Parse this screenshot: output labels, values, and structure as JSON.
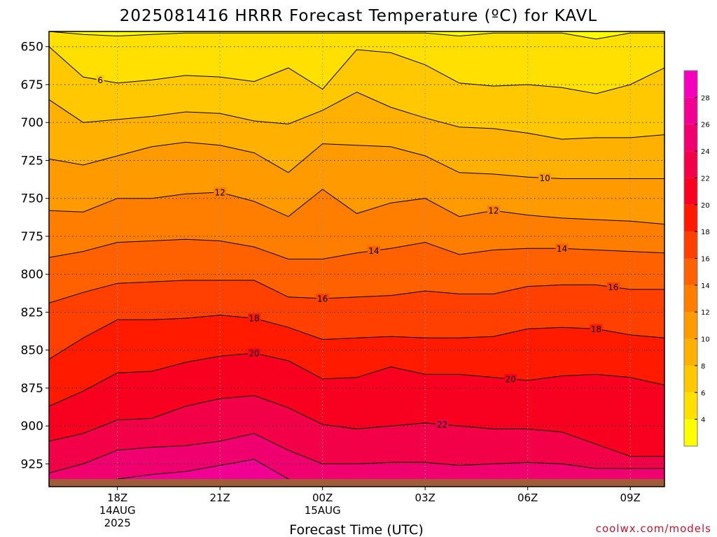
{
  "chart_data": {
    "type": "heatmap",
    "title": "2025081416 HRRR Forecast Temperature (ºC) for KAVL",
    "xlabel": "Forecast Time (UTC)",
    "ylabel": "",
    "y_axis": {
      "unit": "hPa",
      "ticks": [
        650,
        675,
        700,
        725,
        750,
        775,
        800,
        825,
        850,
        875,
        900,
        925
      ],
      "range": [
        640,
        940
      ],
      "inverted": true
    },
    "x_axis": {
      "range_hours": [
        -2.0,
        16.0
      ],
      "ticks": [
        {
          "hour": 0,
          "lines": [
            "18Z",
            "14AUG",
            "2025"
          ]
        },
        {
          "hour": 3,
          "lines": [
            "21Z"
          ]
        },
        {
          "hour": 6,
          "lines": [
            "00Z",
            "15AUG"
          ]
        },
        {
          "hour": 9,
          "lines": [
            "03Z"
          ]
        },
        {
          "hour": 12,
          "lines": [
            "06Z"
          ]
        },
        {
          "hour": 15,
          "lines": [
            "09Z"
          ]
        }
      ]
    },
    "x_hours": [
      -2,
      -1,
      0,
      1,
      2,
      3,
      4,
      5,
      6,
      7,
      8,
      9,
      10,
      11,
      12,
      13,
      14,
      15,
      16
    ],
    "contour_interval_c": 2,
    "contours": [
      {
        "value": 4,
        "label": "",
        "p": [
          640,
          642,
          643,
          642,
          641,
          641,
          641,
          641,
          641,
          641,
          641,
          641,
          643,
          641,
          641,
          641,
          645,
          641,
          641
        ]
      },
      {
        "value": 6,
        "label": "6",
        "p": [
          650,
          670,
          674,
          672,
          669,
          670,
          673,
          664,
          678,
          652,
          654,
          662,
          674,
          676,
          675,
          677,
          681,
          675,
          664
        ]
      },
      {
        "value": 8,
        "label": "",
        "p": [
          685,
          700,
          698,
          696,
          693,
          694,
          699,
          701,
          692,
          680,
          690,
          697,
          703,
          704,
          707,
          711,
          710,
          710,
          708
        ]
      },
      {
        "value": 10,
        "label": "10",
        "p": [
          724,
          728,
          722,
          716,
          713,
          715,
          720,
          733,
          714,
          715,
          716,
          722,
          733,
          734,
          736,
          737,
          737,
          737,
          737
        ]
      },
      {
        "value": 12,
        "label": "12",
        "p": [
          758,
          759,
          750,
          750,
          747,
          746,
          752,
          762,
          744,
          760,
          753,
          750,
          762,
          758,
          761,
          763,
          764,
          765,
          767
        ]
      },
      {
        "value": 14,
        "label": "14",
        "p": [
          789,
          785,
          779,
          778,
          777,
          778,
          782,
          790,
          790,
          786,
          783,
          779,
          787,
          784,
          783,
          783,
          784,
          785,
          786
        ]
      },
      {
        "value": 16,
        "label": "16",
        "p": [
          819,
          812,
          806,
          805,
          804,
          804,
          804,
          815,
          816,
          815,
          814,
          811,
          813,
          813,
          808,
          807,
          807,
          810,
          810
        ]
      },
      {
        "value": 18,
        "label": "18",
        "p": [
          856,
          842,
          830,
          830,
          829,
          827,
          829,
          835,
          843,
          842,
          841,
          842,
          842,
          841,
          836,
          835,
          836,
          840,
          842
        ]
      },
      {
        "value": 20,
        "label": "20",
        "p": [
          887,
          877,
          865,
          864,
          858,
          854,
          852,
          857,
          869,
          868,
          861,
          866,
          866,
          868,
          870,
          867,
          866,
          868,
          873
        ]
      },
      {
        "value": 22,
        "label": "22",
        "p": [
          910,
          905,
          896,
          895,
          887,
          882,
          880,
          888,
          899,
          902,
          900,
          898,
          900,
          902,
          902,
          904,
          912,
          920,
          920
        ]
      },
      {
        "value": 24,
        "label": "",
        "p": [
          931,
          925,
          916,
          914,
          913,
          910,
          905,
          916,
          925,
          925,
          924,
          924,
          926,
          925,
          924,
          925,
          928,
          928,
          928
        ]
      },
      {
        "value": 26,
        "label": "",
        "p": [
          940,
          940,
          935,
          932,
          930,
          926,
          922,
          935,
          940,
          940,
          940,
          940,
          940,
          940,
          940,
          940,
          940,
          940,
          940
        ]
      }
    ],
    "ground": {
      "pressure_hpa": 935,
      "color": "#a05c38"
    },
    "colorbar": {
      "ticks": [
        4,
        6,
        8,
        10,
        12,
        14,
        16,
        18,
        20,
        22,
        24,
        26,
        28
      ],
      "levels": [
        {
          "lo": 2,
          "hi": 4,
          "color": "#ffff00"
        },
        {
          "lo": 4,
          "hi": 6,
          "color": "#ffe000"
        },
        {
          "lo": 6,
          "hi": 8,
          "color": "#ffc800"
        },
        {
          "lo": 8,
          "hi": 10,
          "color": "#ffb000"
        },
        {
          "lo": 10,
          "hi": 12,
          "color": "#ff9a00"
        },
        {
          "lo": 12,
          "hi": 14,
          "color": "#ff7e00"
        },
        {
          "lo": 14,
          "hi": 16,
          "color": "#ff6000"
        },
        {
          "lo": 16,
          "hi": 18,
          "color": "#ff4000"
        },
        {
          "lo": 18,
          "hi": 20,
          "color": "#ff1a00"
        },
        {
          "lo": 20,
          "hi": 22,
          "color": "#f80020"
        },
        {
          "lo": 22,
          "hi": 24,
          "color": "#f20048"
        },
        {
          "lo": 24,
          "hi": 26,
          "color": "#f0006e"
        },
        {
          "lo": 26,
          "hi": 28,
          "color": "#f20094"
        },
        {
          "lo": 28,
          "hi": 30,
          "color": "#f500bc"
        }
      ]
    },
    "credit": "coolwx.com/models"
  }
}
